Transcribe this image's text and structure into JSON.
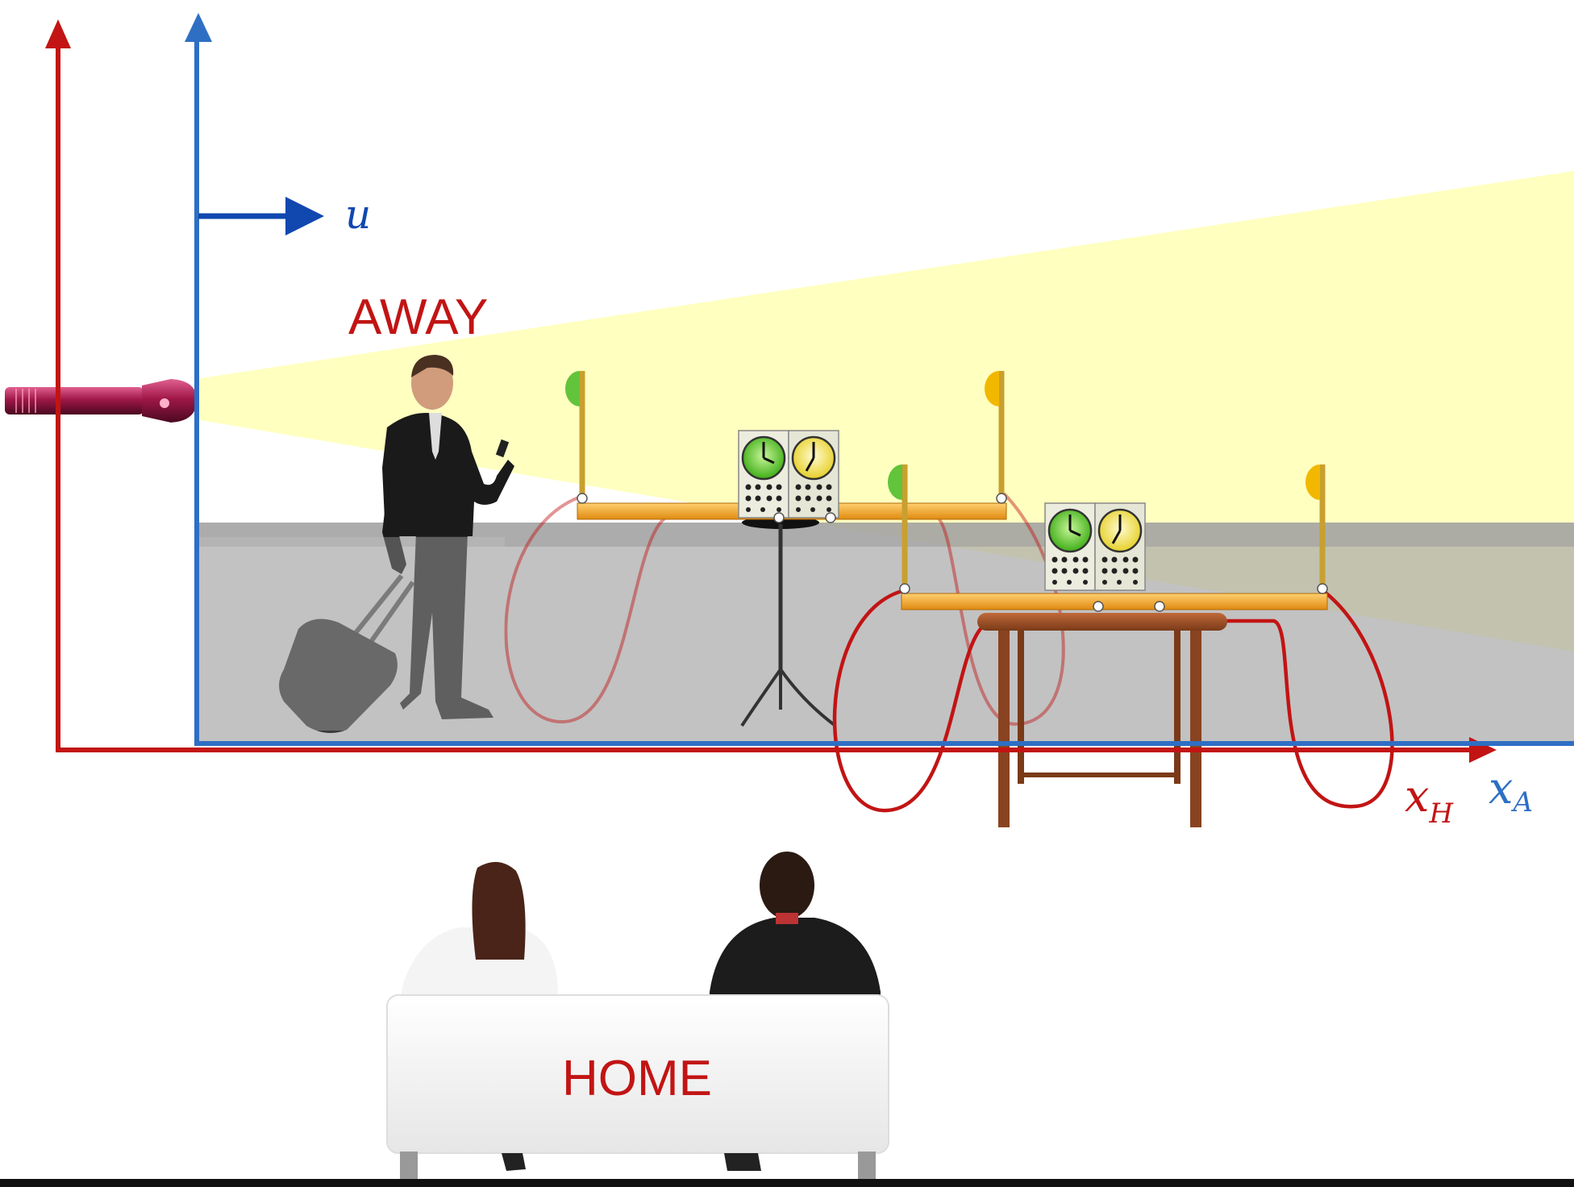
{
  "labels": {
    "away": "AWAY",
    "home": "HOME",
    "velocity": "u",
    "x_home_base": "x",
    "x_home_sub": "H",
    "x_away_base": "x",
    "x_away_sub": "A"
  },
  "colors": {
    "home_frame": "#c21414",
    "away_frame": "#2e6fc4",
    "velocity_arrow": "#1048b0",
    "light_beam": "#ffffc0",
    "platform": "#c4c4c4",
    "clock_green": "#62d22c",
    "clock_yellow": "#f4ea52",
    "ruler": "#f0a020",
    "table_wood": "#a0522d"
  },
  "icons": {
    "flashlight": "flashlight-icon",
    "traveler": "traveler-icon",
    "suitcase": "suitcase-icon",
    "couch": "couch-icon",
    "observers": "observers-icon",
    "clock": "clock-icon",
    "flag": "flag-icon"
  }
}
